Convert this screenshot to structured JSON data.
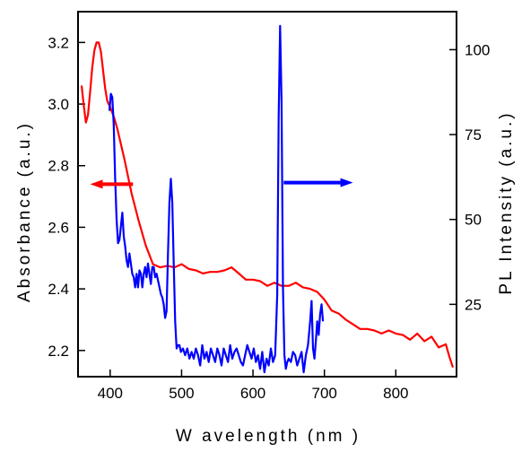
{
  "chart_data": {
    "type": "line",
    "xlabel": "W avelength (nm )",
    "ylabel_left": "Absorbance (a.u.)",
    "ylabel_right": "PL Intensity (a.u.)",
    "xlim": [
      355,
      885
    ],
    "ylim_left": [
      2.115,
      3.3
    ],
    "ylim_right": [
      3.7,
      111.2
    ],
    "x_ticks": [
      400,
      500,
      600,
      700,
      800
    ],
    "y_left_ticks": [
      2.2,
      2.4,
      2.6,
      2.8,
      3.0,
      3.2
    ],
    "y_right_ticks": [
      25,
      50,
      75,
      100
    ],
    "grid": false,
    "legend": "none",
    "series": [
      {
        "axis": "left",
        "color": "#ff0000",
        "x": [
          360,
          363,
          366,
          369,
          372,
          375,
          378,
          381,
          384,
          387,
          390,
          393,
          396,
          400,
          405,
          410,
          415,
          420,
          430,
          440,
          450,
          460,
          470,
          480,
          490,
          500,
          510,
          520,
          530,
          540,
          550,
          560,
          570,
          580,
          590,
          600,
          610,
          620,
          630,
          640,
          650,
          660,
          670,
          680,
          690,
          700,
          710,
          720,
          730,
          740,
          750,
          760,
          770,
          780,
          790,
          800,
          810,
          820,
          830,
          840,
          850,
          860,
          870,
          875,
          880
        ],
        "y": [
          3.06,
          2.995,
          2.94,
          2.965,
          3.04,
          3.12,
          3.175,
          3.2,
          3.2,
          3.17,
          3.11,
          3.05,
          3.01,
          2.99,
          2.96,
          2.92,
          2.87,
          2.82,
          2.71,
          2.62,
          2.54,
          2.48,
          2.47,
          2.475,
          2.47,
          2.48,
          2.465,
          2.46,
          2.45,
          2.455,
          2.455,
          2.46,
          2.47,
          2.45,
          2.43,
          2.43,
          2.425,
          2.41,
          2.42,
          2.41,
          2.41,
          2.42,
          2.405,
          2.4,
          2.39,
          2.365,
          2.33,
          2.32,
          2.3,
          2.285,
          2.27,
          2.27,
          2.265,
          2.255,
          2.265,
          2.255,
          2.25,
          2.235,
          2.255,
          2.23,
          2.245,
          2.21,
          2.22,
          2.18,
          2.145
        ]
      },
      {
        "axis": "right",
        "color": "#0000ff",
        "x": [
          399,
          401,
          403,
          405,
          407,
          409,
          411,
          413,
          415,
          417,
          419,
          421,
          423,
          425,
          427,
          429,
          431,
          433,
          435,
          437,
          439,
          441,
          443,
          445,
          447,
          449,
          451,
          453,
          455,
          457,
          459,
          461,
          463,
          465,
          467,
          469,
          471,
          473,
          475,
          477,
          479,
          481,
          483,
          485,
          487,
          489,
          491,
          493,
          495,
          497,
          499,
          502,
          505,
          508,
          511,
          514,
          517,
          520,
          523,
          526,
          529,
          532,
          535,
          538,
          541,
          544,
          547,
          550,
          553,
          556,
          559,
          562,
          565,
          568,
          571,
          574,
          577,
          580,
          583,
          586,
          589,
          592,
          595,
          598,
          601,
          604,
          607,
          610,
          613,
          616,
          619,
          622,
          625,
          628,
          631,
          634,
          636,
          638,
          640,
          642,
          644,
          646,
          648,
          650,
          653,
          656,
          659,
          662,
          665,
          668,
          671,
          674,
          677,
          680,
          682,
          684,
          686,
          688,
          690,
          692,
          694,
          696,
          698
        ],
        "y": [
          82,
          87,
          86,
          78,
          62,
          50,
          43,
          44,
          48,
          52,
          45,
          42,
          38,
          36,
          40,
          37,
          34,
          33,
          30,
          34,
          30,
          35,
          34,
          30,
          34,
          36,
          33,
          37,
          34,
          31,
          36,
          36,
          33,
          34,
          32,
          30,
          28,
          27,
          25,
          21,
          23,
          40,
          55,
          62,
          55,
          37,
          20,
          12,
          13,
          13,
          11,
          12,
          10,
          12,
          9,
          11,
          9,
          12,
          10,
          7,
          13,
          9,
          11,
          8,
          12,
          10,
          8,
          12,
          10,
          7,
          12,
          10,
          8,
          13,
          9,
          11,
          12,
          10,
          8,
          7,
          10,
          13,
          11,
          9,
          12,
          8,
          10,
          6,
          11,
          5,
          9,
          7,
          12,
          8,
          10,
          28,
          80,
          107,
          85,
          30,
          10,
          6,
          8,
          9,
          8,
          11,
          10,
          7,
          9,
          11,
          5,
          10,
          13,
          20,
          26,
          12,
          9,
          14,
          20,
          16,
          22,
          25,
          20
        ]
      }
    ],
    "annotations": [
      {
        "kind": "arrow",
        "direction": "left",
        "color": "#ff0000",
        "x_from": 432,
        "x_to": 372,
        "y": 2.74,
        "axis": "left"
      },
      {
        "kind": "arrow",
        "direction": "right",
        "color": "#0000ff",
        "x_from": 643,
        "x_to": 740,
        "y": 2.745,
        "axis": "left"
      }
    ]
  }
}
